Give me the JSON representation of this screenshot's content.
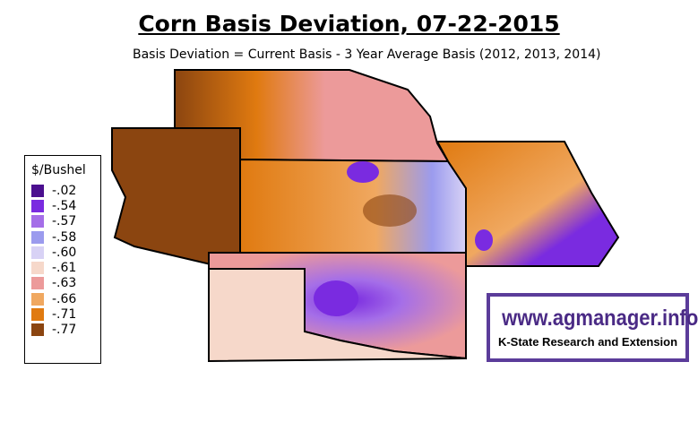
{
  "title": "Corn Basis Deviation, 07-22-2015",
  "subtitle": "Basis Deviation = Current Basis - 3 Year Average Basis (2012, 2013, 2014)",
  "legend": {
    "title": "$/Bushel",
    "items": [
      {
        "label": "-.02",
        "color": "#4b0f8f"
      },
      {
        "label": "-.54",
        "color": "#7a2be0"
      },
      {
        "label": "-.57",
        "color": "#a56ee8"
      },
      {
        "label": "-.58",
        "color": "#9b9bee"
      },
      {
        "label": "-.60",
        "color": "#d8d2f5"
      },
      {
        "label": "-.61",
        "color": "#f6d8ca"
      },
      {
        "label": "-.63",
        "color": "#ec9a9a"
      },
      {
        "label": "-.66",
        "color": "#f0a860"
      },
      {
        "label": "-.71",
        "color": "#e07a10"
      },
      {
        "label": "-.77",
        "color": "#8b4510"
      }
    ]
  },
  "watermark": {
    "url": "www.agmanager.info",
    "org": "K-State Research and Extension"
  }
}
